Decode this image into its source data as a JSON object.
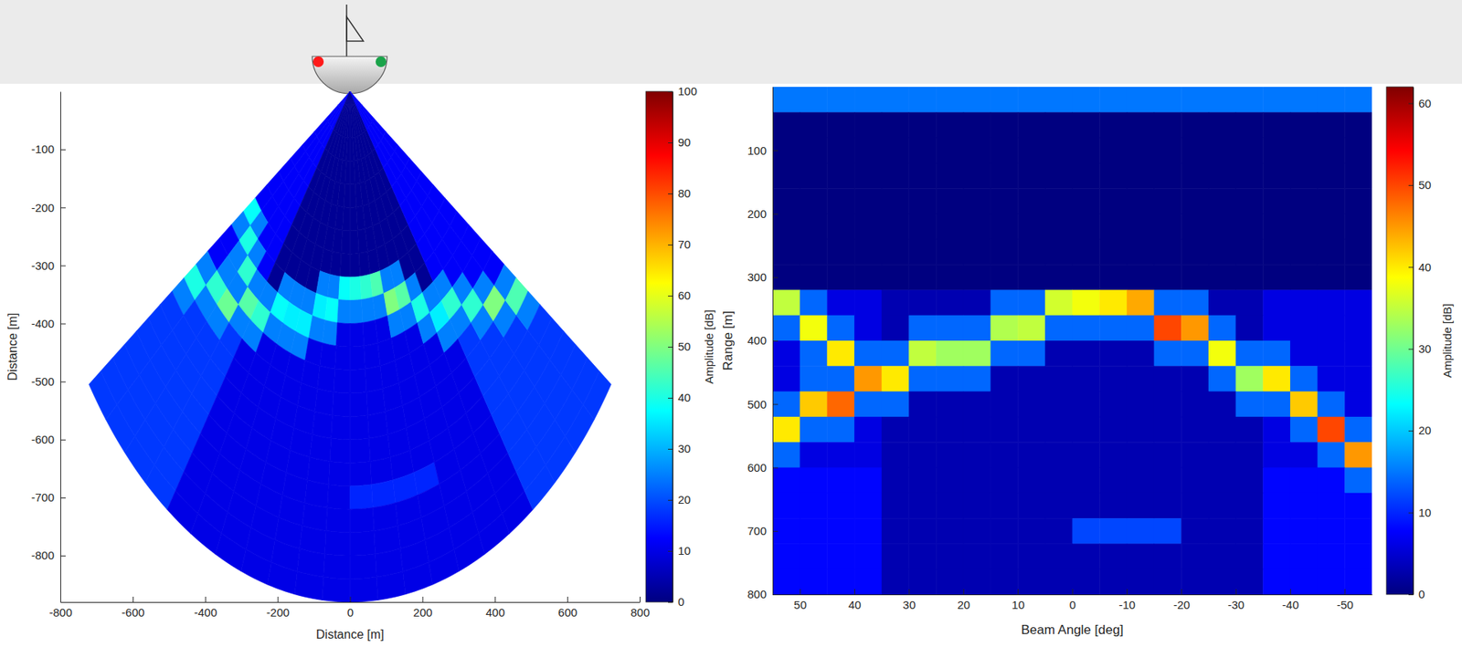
{
  "chart_data": [
    {
      "type": "polar_heatmap",
      "x_label": "Distance [m]",
      "y_label": "Distance [m]",
      "xlim": [
        -800,
        800
      ],
      "xticks": [
        -800,
        -600,
        -400,
        -200,
        0,
        200,
        400,
        600,
        800
      ],
      "ylim": [
        -880,
        0
      ],
      "yticks": [
        -800,
        -700,
        -600,
        -500,
        -400,
        -300,
        -200,
        -100
      ],
      "angle_bins": [
        55,
        50,
        45,
        40,
        35,
        30,
        25,
        20,
        15,
        10,
        5,
        0,
        -5,
        -10,
        -15,
        -20,
        -25,
        -30,
        -35,
        -40,
        -45,
        -50,
        -55
      ],
      "range_bins": [
        0,
        40,
        80,
        120,
        160,
        200,
        240,
        280,
        320,
        360,
        400,
        440,
        480,
        520,
        560,
        600,
        640,
        680,
        720,
        760,
        800,
        840,
        880
      ],
      "cells": [
        [
          12,
          12,
          12,
          12,
          2,
          2,
          2,
          2,
          2,
          2,
          2,
          2,
          2,
          2,
          2,
          2,
          2,
          2,
          12,
          12,
          12,
          12
        ],
        [
          12,
          12,
          12,
          12,
          2,
          2,
          2,
          2,
          2,
          2,
          2,
          2,
          2,
          2,
          2,
          2,
          2,
          2,
          12,
          12,
          12,
          12
        ],
        [
          12,
          12,
          12,
          12,
          2,
          2,
          2,
          2,
          2,
          2,
          2,
          2,
          2,
          2,
          2,
          2,
          2,
          2,
          12,
          12,
          12,
          12
        ],
        [
          12,
          12,
          12,
          12,
          2,
          2,
          2,
          2,
          2,
          2,
          2,
          2,
          2,
          2,
          2,
          2,
          2,
          2,
          12,
          12,
          12,
          12
        ],
        [
          12,
          12,
          12,
          12,
          2,
          2,
          2,
          2,
          2,
          2,
          2,
          2,
          2,
          2,
          2,
          2,
          2,
          2,
          12,
          12,
          12,
          12
        ],
        [
          12,
          12,
          12,
          12,
          2,
          2,
          2,
          2,
          2,
          2,
          2,
          2,
          2,
          2,
          2,
          2,
          2,
          2,
          12,
          12,
          12,
          12
        ],
        [
          12,
          12,
          12,
          12,
          2,
          2,
          2,
          2,
          2,
          2,
          2,
          2,
          2,
          2,
          2,
          2,
          2,
          2,
          12,
          12,
          12,
          12
        ],
        [
          12,
          12,
          12,
          12,
          2,
          2,
          2,
          2,
          2,
          2,
          2,
          2,
          2,
          2,
          2,
          2,
          2,
          2,
          12,
          12,
          12,
          12
        ],
        [
          38,
          25,
          12,
          12,
          2,
          2,
          2,
          2,
          25,
          25,
          38,
          40,
          42,
          45,
          25,
          25,
          2,
          2,
          12,
          12,
          12,
          12
        ],
        [
          25,
          40,
          25,
          12,
          2,
          25,
          25,
          25,
          36,
          38,
          25,
          25,
          25,
          25,
          50,
          46,
          25,
          2,
          12,
          12,
          12,
          12
        ],
        [
          12,
          25,
          42,
          25,
          25,
          38,
          36,
          36,
          25,
          25,
          10,
          10,
          10,
          10,
          25,
          25,
          40,
          25,
          25,
          12,
          12,
          12
        ],
        [
          12,
          25,
          25,
          46,
          42,
          25,
          25,
          25,
          10,
          10,
          10,
          10,
          10,
          10,
          10,
          10,
          25,
          36,
          42,
          25,
          12,
          12
        ],
        [
          25,
          42,
          48,
          25,
          25,
          10,
          10,
          10,
          10,
          10,
          10,
          10,
          10,
          10,
          10,
          10,
          10,
          25,
          25,
          42,
          25,
          12
        ],
        [
          40,
          25,
          25,
          18,
          10,
          10,
          10,
          10,
          10,
          10,
          10,
          10,
          10,
          10,
          10,
          10,
          10,
          10,
          18,
          25,
          50,
          25
        ],
        [
          25,
          18,
          18,
          18,
          10,
          10,
          10,
          10,
          10,
          10,
          10,
          10,
          10,
          10,
          10,
          10,
          10,
          10,
          18,
          18,
          25,
          45
        ],
        [
          18,
          18,
          18,
          18,
          10,
          10,
          10,
          10,
          10,
          10,
          10,
          10,
          10,
          10,
          10,
          10,
          10,
          10,
          18,
          18,
          18,
          25
        ],
        [
          18,
          18,
          18,
          18,
          10,
          10,
          10,
          10,
          10,
          10,
          10,
          10,
          10,
          10,
          10,
          10,
          10,
          10,
          18,
          18,
          18,
          18
        ],
        [
          18,
          18,
          18,
          18,
          10,
          10,
          10,
          10,
          10,
          10,
          10,
          16,
          16,
          16,
          16,
          10,
          10,
          10,
          18,
          18,
          18,
          18
        ],
        [
          18,
          18,
          18,
          18,
          10,
          10,
          10,
          10,
          10,
          10,
          10,
          10,
          10,
          10,
          10,
          10,
          10,
          10,
          18,
          18,
          18,
          18
        ],
        [
          18,
          18,
          18,
          18,
          10,
          10,
          10,
          10,
          10,
          10,
          10,
          10,
          10,
          10,
          10,
          10,
          10,
          10,
          18,
          18,
          18,
          18
        ],
        [
          18,
          18,
          18,
          18,
          10,
          10,
          10,
          10,
          10,
          10,
          10,
          10,
          10,
          10,
          10,
          10,
          10,
          10,
          18,
          18,
          18,
          18
        ],
        [
          18,
          18,
          18,
          18,
          10,
          10,
          10,
          10,
          10,
          10,
          10,
          10,
          10,
          10,
          10,
          10,
          10,
          10,
          18,
          18,
          18,
          18
        ]
      ],
      "colorbar": {
        "label": "Amplitude [dB]",
        "range": [
          0,
          100
        ],
        "ticks": [
          0,
          10,
          20,
          30,
          40,
          50,
          60,
          70,
          80,
          90,
          100
        ]
      }
    },
    {
      "type": "heatmap",
      "x_label": "Beam Angle [deg]",
      "y_label": "Range [m]",
      "xlim": [
        55,
        -55
      ],
      "xticks": [
        50,
        40,
        30,
        20,
        10,
        0,
        -10,
        -20,
        -30,
        -40,
        -50
      ],
      "ylim": [
        800,
        0
      ],
      "yticks": [
        100,
        200,
        300,
        400,
        500,
        600,
        700,
        800
      ],
      "x_bins": [
        55,
        50,
        45,
        40,
        35,
        30,
        25,
        20,
        15,
        10,
        5,
        0,
        -5,
        -10,
        -15,
        -20,
        -25,
        -30,
        -35,
        -40,
        -45,
        -50,
        -55
      ],
      "y_bins": [
        0,
        40,
        80,
        120,
        160,
        200,
        240,
        280,
        320,
        360,
        400,
        440,
        480,
        520,
        560,
        600,
        640,
        680,
        720,
        760,
        800
      ],
      "cells": [
        [
          15,
          15,
          15,
          15,
          15,
          15,
          15,
          15,
          15,
          15,
          15,
          15,
          15,
          15,
          15,
          15,
          15,
          15,
          15,
          15,
          15,
          15
        ],
        [
          0,
          0,
          0,
          0,
          0,
          0,
          0,
          0,
          0,
          0,
          0,
          0,
          0,
          0,
          0,
          0,
          0,
          0,
          0,
          0,
          0,
          0
        ],
        [
          0,
          0,
          0,
          0,
          0,
          0,
          0,
          0,
          0,
          0,
          0,
          0,
          0,
          0,
          0,
          0,
          0,
          0,
          0,
          0,
          0,
          0
        ],
        [
          0,
          0,
          0,
          0,
          0,
          0,
          0,
          0,
          0,
          0,
          0,
          0,
          0,
          0,
          0,
          0,
          0,
          0,
          0,
          0,
          0,
          0
        ],
        [
          0,
          0,
          0,
          0,
          0,
          0,
          0,
          0,
          0,
          0,
          0,
          0,
          0,
          0,
          0,
          0,
          0,
          0,
          0,
          0,
          0,
          0
        ],
        [
          0,
          0,
          0,
          0,
          0,
          0,
          0,
          0,
          0,
          0,
          0,
          0,
          0,
          0,
          0,
          0,
          0,
          0,
          0,
          0,
          0,
          0
        ],
        [
          0,
          0,
          0,
          0,
          0,
          0,
          0,
          0,
          0,
          0,
          0,
          0,
          0,
          0,
          0,
          0,
          0,
          0,
          0,
          0,
          0,
          0
        ],
        [
          0,
          0,
          0,
          0,
          0,
          0,
          0,
          0,
          0,
          0,
          0,
          0,
          0,
          0,
          0,
          0,
          0,
          0,
          0,
          0,
          0,
          0
        ],
        [
          35,
          14,
          6,
          6,
          3,
          3,
          3,
          3,
          14,
          14,
          36,
          38,
          40,
          44,
          14,
          14,
          3,
          3,
          6,
          6,
          6,
          6
        ],
        [
          14,
          38,
          14,
          6,
          3,
          14,
          14,
          14,
          34,
          35,
          14,
          14,
          14,
          14,
          50,
          45,
          14,
          3,
          6,
          6,
          6,
          6
        ],
        [
          6,
          14,
          40,
          14,
          14,
          35,
          33,
          33,
          14,
          14,
          3,
          3,
          3,
          3,
          14,
          14,
          38,
          14,
          14,
          6,
          6,
          6
        ],
        [
          6,
          14,
          14,
          45,
          40,
          14,
          14,
          14,
          3,
          3,
          3,
          3,
          3,
          3,
          3,
          3,
          14,
          33,
          40,
          14,
          6,
          6
        ],
        [
          14,
          42,
          48,
          14,
          14,
          3,
          3,
          3,
          3,
          3,
          3,
          3,
          3,
          3,
          3,
          3,
          3,
          14,
          14,
          42,
          14,
          6
        ],
        [
          40,
          14,
          14,
          6,
          3,
          3,
          3,
          3,
          3,
          3,
          3,
          3,
          3,
          3,
          3,
          3,
          3,
          3,
          6,
          14,
          50,
          14
        ],
        [
          14,
          6,
          6,
          6,
          3,
          3,
          3,
          3,
          3,
          3,
          3,
          3,
          3,
          3,
          3,
          3,
          3,
          3,
          6,
          6,
          14,
          45
        ],
        [
          8,
          8,
          8,
          8,
          3,
          3,
          3,
          3,
          3,
          3,
          3,
          3,
          3,
          3,
          3,
          3,
          3,
          3,
          8,
          8,
          8,
          14
        ],
        [
          8,
          8,
          8,
          8,
          3,
          3,
          3,
          3,
          3,
          3,
          3,
          3,
          3,
          3,
          3,
          3,
          3,
          3,
          8,
          8,
          8,
          8
        ],
        [
          8,
          8,
          8,
          8,
          3,
          3,
          3,
          3,
          3,
          3,
          3,
          12,
          12,
          12,
          12,
          3,
          3,
          3,
          8,
          8,
          8,
          8
        ],
        [
          8,
          8,
          8,
          8,
          3,
          3,
          3,
          3,
          3,
          3,
          3,
          3,
          3,
          3,
          3,
          3,
          3,
          3,
          8,
          8,
          8,
          8
        ],
        [
          8,
          8,
          8,
          8,
          3,
          3,
          3,
          3,
          3,
          3,
          3,
          3,
          3,
          3,
          3,
          3,
          3,
          3,
          8,
          8,
          8,
          8
        ]
      ],
      "colorbar": {
        "label": "Amplitude [dB]",
        "range": [
          0,
          62
        ],
        "ticks": [
          0,
          10,
          20,
          30,
          40,
          50,
          60
        ]
      }
    }
  ]
}
